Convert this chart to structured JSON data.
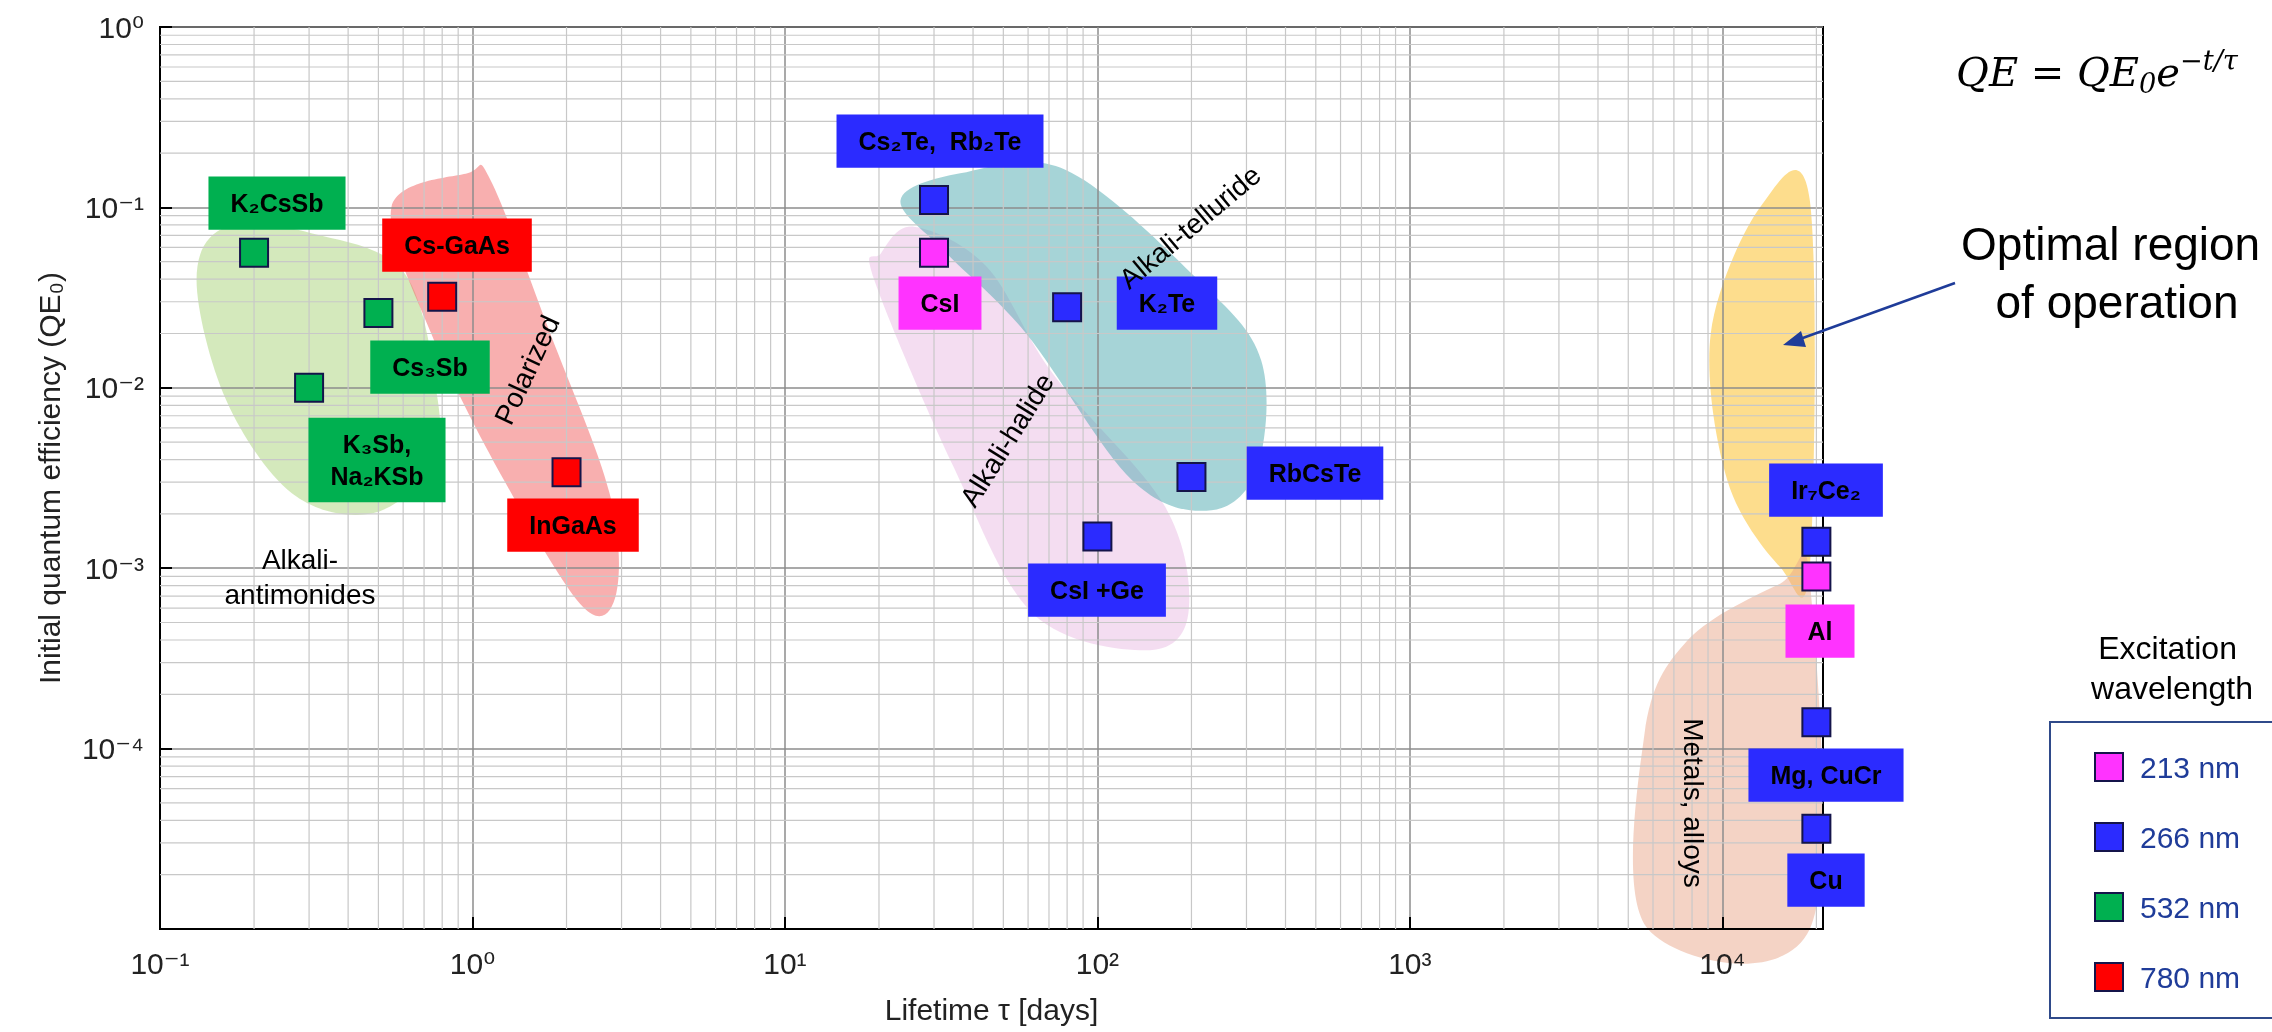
{
  "chart_data": {
    "type": "scatter",
    "xlabel": "Lifetime τ [days]",
    "ylabel": "Initial quantum efficiency (QE₀)",
    "legend_title": "Excitation wavelength",
    "legend": "right",
    "log": "xy",
    "grid": true,
    "marker": "square",
    "xlim": [
      0.1,
      21000
    ],
    "xticks": [
      {
        "value": 0.1,
        "label": "10⁻¹"
      },
      {
        "value": 1,
        "label": "10⁰"
      },
      {
        "value": 10,
        "label": "10¹"
      },
      {
        "value": 100,
        "label": "10²"
      },
      {
        "value": 1000,
        "label": "10³"
      },
      {
        "value": 10000,
        "label": "10⁴"
      }
    ],
    "ylim": [
      1e-05,
      1
    ],
    "yticks": [
      {
        "value": 1e-05,
        "label": null
      },
      {
        "value": 0.0001,
        "label": "10⁻⁴"
      },
      {
        "value": 0.001,
        "label": "10⁻³"
      },
      {
        "value": 0.01,
        "label": "10⁻²"
      },
      {
        "value": 0.1,
        "label": "10⁻¹"
      },
      {
        "value": 1,
        "label": "10⁰"
      }
    ],
    "series": [
      {
        "name": "213 nm",
        "color": "#ff33ff",
        "x": [
          30,
          20000
        ],
        "values": [
          0.056,
          0.0009
        ]
      },
      {
        "name": "266 nm",
        "color": "#2b2bff",
        "x": [
          30,
          80,
          200,
          100,
          20000,
          20000,
          20000
        ],
        "values": [
          0.11,
          0.028,
          0.0032,
          0.0015,
          0.0014,
          0.00014,
          3.6e-05
        ]
      },
      {
        "name": "532 nm",
        "color": "#00b050",
        "x": [
          0.2,
          0.5,
          0.3
        ],
        "values": [
          0.056,
          0.026,
          0.01
        ]
      },
      {
        "name": "780 nm",
        "color": "#ff0000",
        "x": [
          0.8,
          2
        ],
        "values": [
          0.032,
          0.0034
        ]
      }
    ],
    "annotations": [
      "K₂CsSb",
      "Cs-GaAs",
      "Cs₃Sb",
      "K₃Sb,\nNa₂KSb",
      "InGaAs",
      "Cs₂Te,  Rb₂Te",
      "CsI",
      "K₂Te",
      "RbCsTe",
      "CsI +Ge",
      "Ir₇Ce₂",
      "Al",
      "Mg, CuCr",
      "Cu",
      "Alkali-\nantimonides",
      "Polarized",
      "Alkali-telluride",
      "Alkali-halide",
      "Metals, alloys",
      "QE = QE$_{0}$e$^{−t/τ}$",
      "Optimal region of operation"
    ]
  }
}
